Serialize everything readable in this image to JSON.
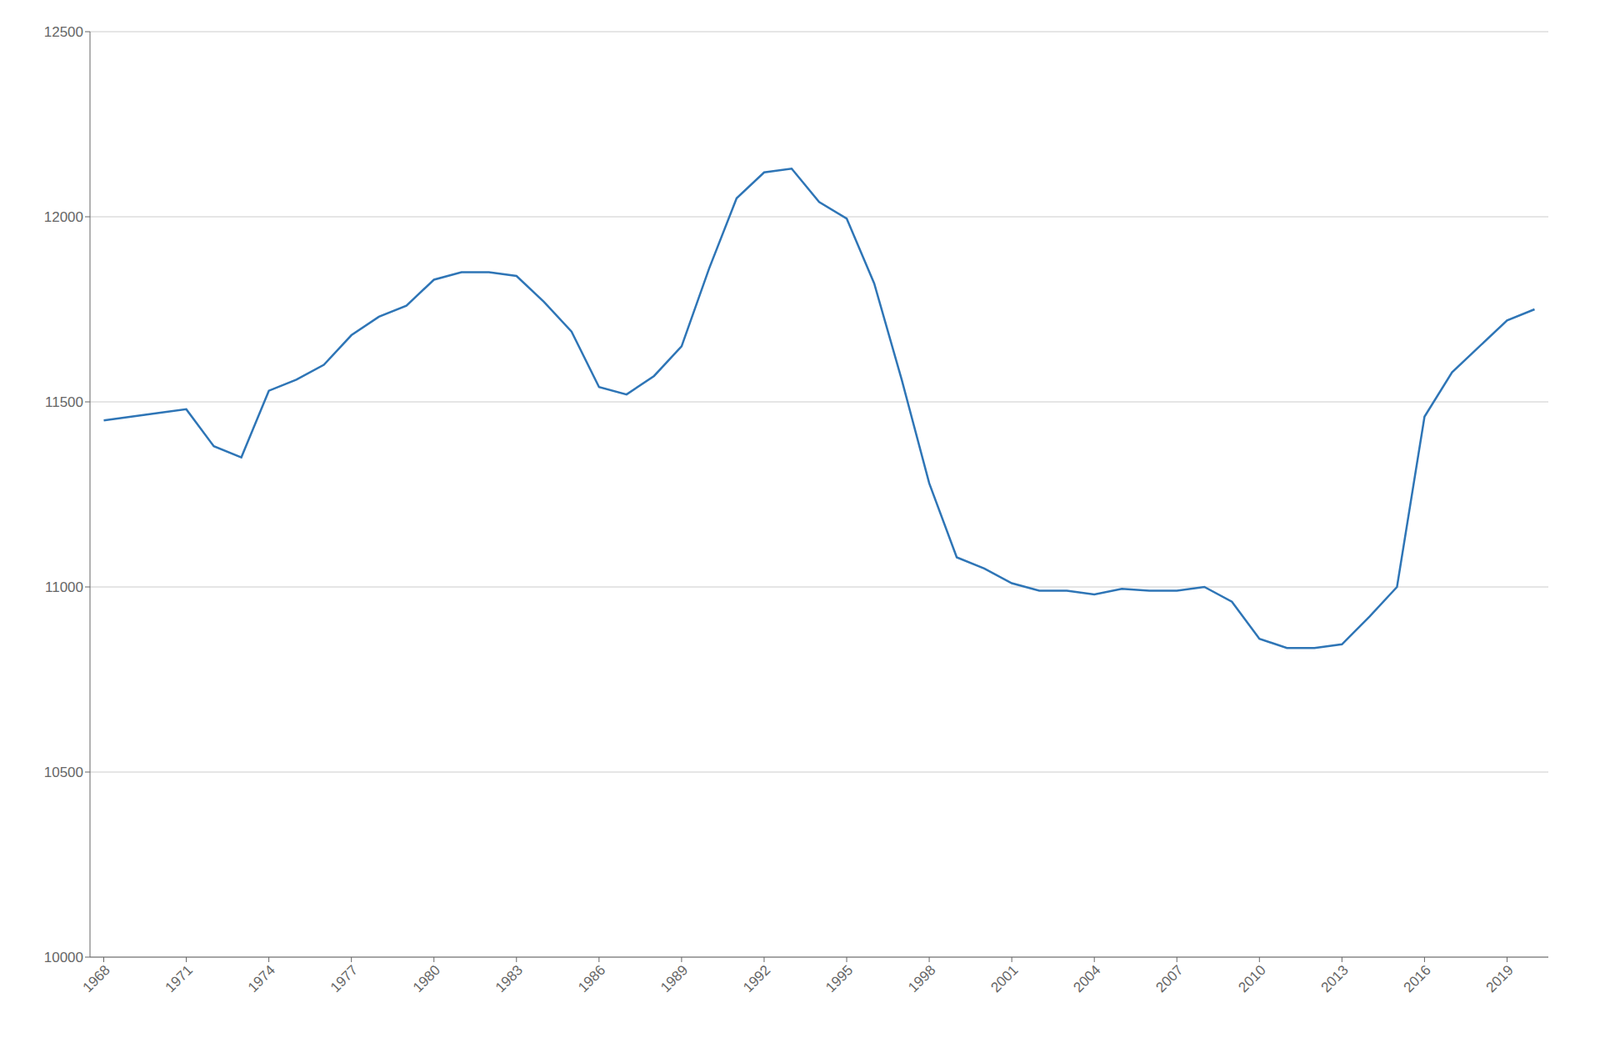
{
  "chart_data": {
    "type": "line",
    "x": [
      1968,
      1969,
      1970,
      1971,
      1972,
      1973,
      1974,
      1975,
      1976,
      1977,
      1978,
      1979,
      1980,
      1981,
      1982,
      1983,
      1984,
      1985,
      1986,
      1987,
      1988,
      1989,
      1990,
      1991,
      1992,
      1993,
      1994,
      1995,
      1996,
      1997,
      1998,
      1999,
      2000,
      2001,
      2002,
      2003,
      2004,
      2005,
      2006,
      2007,
      2008,
      2009,
      2010,
      2011,
      2012,
      2013,
      2014,
      2015,
      2016,
      2017,
      2018,
      2019,
      2020
    ],
    "values": [
      11450,
      11460,
      11470,
      11480,
      11380,
      11350,
      11530,
      11560,
      11600,
      11680,
      11730,
      11760,
      11830,
      11850,
      11850,
      11840,
      11770,
      11690,
      11540,
      11520,
      11570,
      11650,
      11860,
      12050,
      12120,
      12130,
      12040,
      11995,
      11820,
      11560,
      11280,
      11080,
      11050,
      11010,
      10990,
      10990,
      10980,
      10995,
      10990,
      10990,
      11000,
      10960,
      10860,
      10835,
      10835,
      10845,
      10920,
      11000,
      11460,
      11580,
      11650,
      11720,
      11750
    ],
    "color": "#2e75b6",
    "xlim": [
      1967.5,
      2020.5
    ],
    "xticks": [
      1968,
      1971,
      1974,
      1977,
      1980,
      1983,
      1986,
      1989,
      1992,
      1995,
      1998,
      2001,
      2004,
      2007,
      2010,
      2013,
      2016,
      2019
    ],
    "ylim": [
      10000,
      12500
    ],
    "yticks": [
      10000,
      10500,
      11000,
      11500,
      12000,
      12500
    ],
    "grid": true
  }
}
